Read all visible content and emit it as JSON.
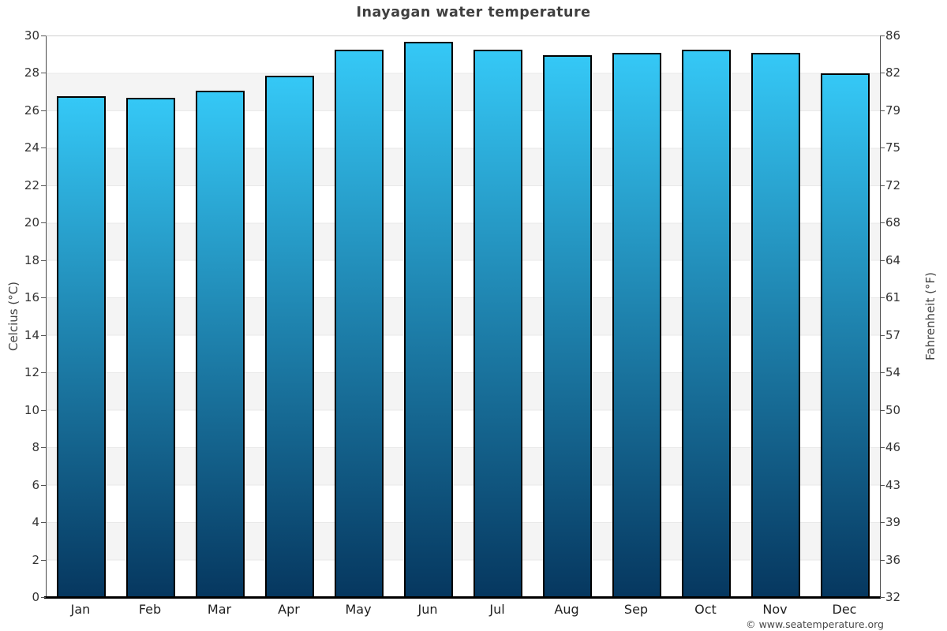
{
  "chart_data": {
    "type": "bar",
    "title": "Inayagan water temperature",
    "categories": [
      "Jan",
      "Feb",
      "Mar",
      "Apr",
      "May",
      "Jun",
      "Jul",
      "Aug",
      "Sep",
      "Oct",
      "Nov",
      "Dec"
    ],
    "values": [
      26.8,
      26.7,
      27.1,
      27.9,
      29.3,
      29.7,
      29.3,
      29.0,
      29.1,
      29.3,
      29.1,
      28.0
    ],
    "ylabel_left": "Celcius (°C)",
    "ylabel_right": "Fahrenheit (°F)",
    "y_left_ticks": [
      0,
      2,
      4,
      6,
      8,
      10,
      12,
      14,
      16,
      18,
      20,
      22,
      24,
      26,
      28,
      30
    ],
    "y_right_ticks": [
      32,
      36,
      39,
      43,
      46,
      50,
      54,
      57,
      61,
      64,
      68,
      72,
      75,
      79,
      82,
      86
    ],
    "ylim": [
      0,
      30
    ],
    "xlabel": "",
    "legend_position": "none",
    "grid": "horizontal alternating 2°C bands",
    "colors": {
      "bar_top": "#35c8f6",
      "bar_bottom": "#06375f",
      "bar_border": "#000000",
      "band_gray": "#f4f4f4",
      "band_line": "#e9e9e9",
      "axis_line": "#000000",
      "title_text": "#3f3f3f",
      "tick_text": "#333333"
    }
  },
  "footer": {
    "credit": "© www.seatemperature.org"
  }
}
